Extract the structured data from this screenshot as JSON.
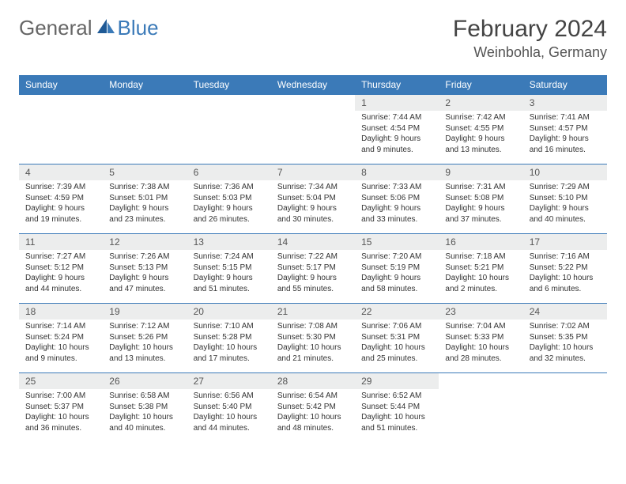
{
  "logo": {
    "part1": "General",
    "part2": "Blue"
  },
  "title": "February 2024",
  "location": "Weinbohla, Germany",
  "colors": {
    "header_bg": "#3b7ab8",
    "header_text": "#ffffff",
    "daynum_bg": "#eceded",
    "border": "#3b7ab8",
    "logo_gray": "#666666",
    "logo_blue": "#3b7ab8"
  },
  "weekdays": [
    "Sunday",
    "Monday",
    "Tuesday",
    "Wednesday",
    "Thursday",
    "Friday",
    "Saturday"
  ],
  "weeks": [
    [
      null,
      null,
      null,
      null,
      {
        "n": "1",
        "sr": "7:44 AM",
        "ss": "4:54 PM",
        "dl": "9 hours and 9 minutes."
      },
      {
        "n": "2",
        "sr": "7:42 AM",
        "ss": "4:55 PM",
        "dl": "9 hours and 13 minutes."
      },
      {
        "n": "3",
        "sr": "7:41 AM",
        "ss": "4:57 PM",
        "dl": "9 hours and 16 minutes."
      }
    ],
    [
      {
        "n": "4",
        "sr": "7:39 AM",
        "ss": "4:59 PM",
        "dl": "9 hours and 19 minutes."
      },
      {
        "n": "5",
        "sr": "7:38 AM",
        "ss": "5:01 PM",
        "dl": "9 hours and 23 minutes."
      },
      {
        "n": "6",
        "sr": "7:36 AM",
        "ss": "5:03 PM",
        "dl": "9 hours and 26 minutes."
      },
      {
        "n": "7",
        "sr": "7:34 AM",
        "ss": "5:04 PM",
        "dl": "9 hours and 30 minutes."
      },
      {
        "n": "8",
        "sr": "7:33 AM",
        "ss": "5:06 PM",
        "dl": "9 hours and 33 minutes."
      },
      {
        "n": "9",
        "sr": "7:31 AM",
        "ss": "5:08 PM",
        "dl": "9 hours and 37 minutes."
      },
      {
        "n": "10",
        "sr": "7:29 AM",
        "ss": "5:10 PM",
        "dl": "9 hours and 40 minutes."
      }
    ],
    [
      {
        "n": "11",
        "sr": "7:27 AM",
        "ss": "5:12 PM",
        "dl": "9 hours and 44 minutes."
      },
      {
        "n": "12",
        "sr": "7:26 AM",
        "ss": "5:13 PM",
        "dl": "9 hours and 47 minutes."
      },
      {
        "n": "13",
        "sr": "7:24 AM",
        "ss": "5:15 PM",
        "dl": "9 hours and 51 minutes."
      },
      {
        "n": "14",
        "sr": "7:22 AM",
        "ss": "5:17 PM",
        "dl": "9 hours and 55 minutes."
      },
      {
        "n": "15",
        "sr": "7:20 AM",
        "ss": "5:19 PM",
        "dl": "9 hours and 58 minutes."
      },
      {
        "n": "16",
        "sr": "7:18 AM",
        "ss": "5:21 PM",
        "dl": "10 hours and 2 minutes."
      },
      {
        "n": "17",
        "sr": "7:16 AM",
        "ss": "5:22 PM",
        "dl": "10 hours and 6 minutes."
      }
    ],
    [
      {
        "n": "18",
        "sr": "7:14 AM",
        "ss": "5:24 PM",
        "dl": "10 hours and 9 minutes."
      },
      {
        "n": "19",
        "sr": "7:12 AM",
        "ss": "5:26 PM",
        "dl": "10 hours and 13 minutes."
      },
      {
        "n": "20",
        "sr": "7:10 AM",
        "ss": "5:28 PM",
        "dl": "10 hours and 17 minutes."
      },
      {
        "n": "21",
        "sr": "7:08 AM",
        "ss": "5:30 PM",
        "dl": "10 hours and 21 minutes."
      },
      {
        "n": "22",
        "sr": "7:06 AM",
        "ss": "5:31 PM",
        "dl": "10 hours and 25 minutes."
      },
      {
        "n": "23",
        "sr": "7:04 AM",
        "ss": "5:33 PM",
        "dl": "10 hours and 28 minutes."
      },
      {
        "n": "24",
        "sr": "7:02 AM",
        "ss": "5:35 PM",
        "dl": "10 hours and 32 minutes."
      }
    ],
    [
      {
        "n": "25",
        "sr": "7:00 AM",
        "ss": "5:37 PM",
        "dl": "10 hours and 36 minutes."
      },
      {
        "n": "26",
        "sr": "6:58 AM",
        "ss": "5:38 PM",
        "dl": "10 hours and 40 minutes."
      },
      {
        "n": "27",
        "sr": "6:56 AM",
        "ss": "5:40 PM",
        "dl": "10 hours and 44 minutes."
      },
      {
        "n": "28",
        "sr": "6:54 AM",
        "ss": "5:42 PM",
        "dl": "10 hours and 48 minutes."
      },
      {
        "n": "29",
        "sr": "6:52 AM",
        "ss": "5:44 PM",
        "dl": "10 hours and 51 minutes."
      },
      null,
      null
    ]
  ],
  "labels": {
    "sunrise": "Sunrise: ",
    "sunset": "Sunset: ",
    "daylight": "Daylight: "
  }
}
